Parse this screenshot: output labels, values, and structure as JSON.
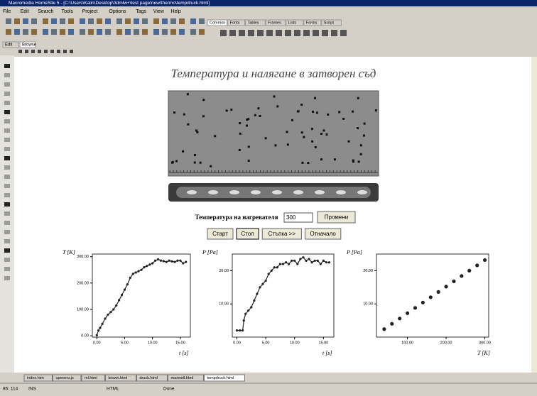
{
  "window": {
    "title": "Macromedia HomeSite 5 - [C:\\Users\\Kalin\\Desktop\\3dmlw+\\test page\\new\\thermo\\tempdruck.html]"
  },
  "menu": [
    "File",
    "Edit",
    "Search",
    "Tools",
    "Project",
    "Options",
    "Tags",
    "View",
    "Help"
  ],
  "tag_tabs": [
    "Common",
    "Fonts",
    "Tables",
    "Frames",
    "Lists",
    "Forms",
    "Script"
  ],
  "editor_tabs": [
    "Edit",
    "Browse"
  ],
  "page": {
    "title": "Температура и налягане в затворен съд",
    "heater_label": "Температура на нагревателя",
    "heater_value": 300,
    "apply_button": "Промени",
    "buttons": [
      "Старт",
      "Стоп",
      "Стъпка >>",
      "Отначало"
    ]
  },
  "chart_data": [
    {
      "type": "line",
      "y_label": "T [K]",
      "x_label": "t [s]",
      "color": "#222222",
      "x": [
        0,
        0.3,
        0.6,
        1,
        1.5,
        2,
        2.5,
        3,
        3.5,
        4,
        4.5,
        5,
        5.5,
        6,
        6.5,
        7,
        7.5,
        8,
        8.5,
        9,
        9.5,
        10,
        10.5,
        11,
        11.5,
        12,
        12.5,
        13,
        13.5,
        14,
        14.5,
        15,
        15.5,
        16
      ],
      "values": [
        2,
        20,
        30,
        45,
        65,
        80,
        90,
        100,
        115,
        135,
        155,
        175,
        195,
        220,
        235,
        240,
        245,
        250,
        260,
        265,
        270,
        275,
        285,
        290,
        285,
        283,
        280,
        285,
        282,
        280,
        285,
        285,
        275,
        280
      ],
      "xlim": [
        -0.8,
        16.8
      ],
      "ylim": [
        -5,
        310
      ],
      "xticks": [
        {
          "value": 0,
          "label": "0.00"
        },
        {
          "value": 5,
          "label": "5.00"
        },
        {
          "value": 10,
          "label": "10.00"
        },
        {
          "value": 15,
          "label": "15.00"
        }
      ],
      "yticks": [
        {
          "value": 0,
          "label": "0.00"
        },
        {
          "value": 100,
          "label": "100.00"
        },
        {
          "value": 200,
          "label": "200.00"
        },
        {
          "value": 300,
          "label": "300.00"
        }
      ]
    },
    {
      "type": "line",
      "y_label": "P [Pa]",
      "x_label": "t [s]",
      "color": "#222222",
      "x": [
        0,
        0.5,
        1,
        1.2,
        1.5,
        2,
        2.5,
        3,
        3.5,
        4,
        4.5,
        5,
        5.5,
        6,
        6.5,
        7,
        7.5,
        8,
        8.5,
        9,
        9.5,
        10,
        10.5,
        11,
        11.5,
        12,
        12.5,
        13,
        13.5,
        14,
        14.5,
        15,
        15.5,
        16
      ],
      "values": [
        2,
        2,
        2,
        5,
        7,
        8,
        9,
        11,
        13,
        15,
        16,
        17,
        19,
        20,
        21,
        21,
        22,
        22,
        22.5,
        22,
        23,
        23,
        22,
        23.5,
        24,
        23,
        23.5,
        22.5,
        23,
        23,
        22,
        23,
        22.5,
        22.5
      ],
      "xlim": [
        -0.8,
        16.8
      ],
      "ylim": [
        0,
        25
      ],
      "xticks": [
        {
          "value": 0,
          "label": "0.00"
        },
        {
          "value": 5,
          "label": "5.00"
        },
        {
          "value": 10,
          "label": "10.00"
        },
        {
          "value": 15,
          "label": "15.00"
        }
      ],
      "yticks": [
        {
          "value": 10,
          "label": "10.00"
        },
        {
          "value": 20,
          "label": "20.00"
        }
      ]
    },
    {
      "type": "scatter",
      "y_label": "P [Pa]",
      "x_label": "T [K]",
      "color": "#222222",
      "x": [
        40,
        60,
        80,
        100,
        120,
        140,
        160,
        180,
        200,
        220,
        240,
        260,
        280,
        300
      ],
      "values": [
        2.4,
        4,
        5.6,
        7.2,
        8.8,
        10.4,
        12,
        13.6,
        15.2,
        16.8,
        18.4,
        20,
        21.6,
        23.2
      ],
      "xlim": [
        20,
        310
      ],
      "ylim": [
        0,
        25
      ],
      "xticks": [
        {
          "value": 100,
          "label": "100.00"
        },
        {
          "value": 200,
          "label": "200.00"
        },
        {
          "value": 300,
          "label": "300.00"
        }
      ],
      "yticks": [
        {
          "value": 10,
          "label": "10.00"
        },
        {
          "value": 20,
          "label": "20.00"
        }
      ]
    }
  ],
  "file_tabs": [
    "index.htm",
    "upmenu.js",
    "ml.html",
    "brown.html",
    "druck.html",
    "maxwell.html",
    "tempdruck.html"
  ],
  "status": [
    "86: 114",
    "INS",
    "HTML",
    "Done"
  ]
}
